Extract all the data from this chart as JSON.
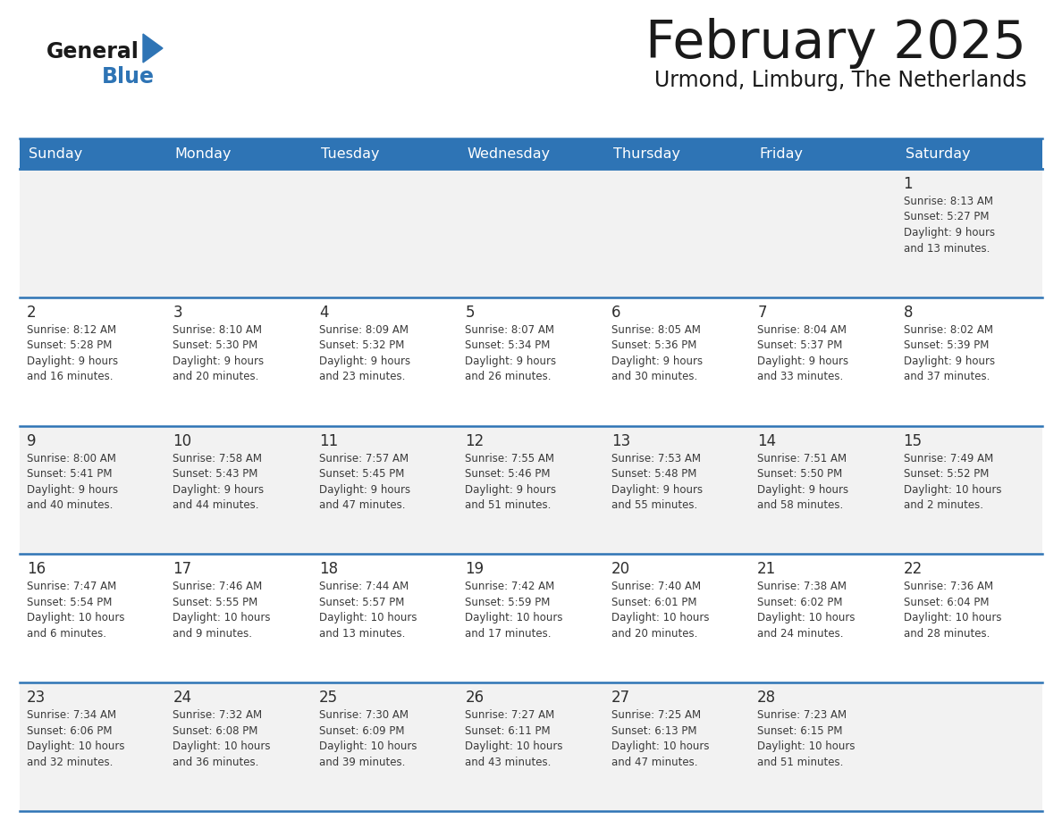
{
  "title": "February 2025",
  "subtitle": "Urmond, Limburg, The Netherlands",
  "header_bg": "#2E74B5",
  "header_text_color": "#FFFFFF",
  "day_names": [
    "Sunday",
    "Monday",
    "Tuesday",
    "Wednesday",
    "Thursday",
    "Friday",
    "Saturday"
  ],
  "cell_bg_odd": "#F2F2F2",
  "cell_bg_even": "#FFFFFF",
  "border_color": "#2E74B5",
  "title_color": "#1a1a1a",
  "subtitle_color": "#1a1a1a",
  "day_number_color": "#2E2E2E",
  "info_text_color": "#3a3a3a",
  "calendar_data": [
    [
      null,
      null,
      null,
      null,
      null,
      null,
      {
        "day": "1",
        "sunrise": "8:13 AM",
        "sunset": "5:27 PM",
        "daylight_hrs": "9",
        "daylight_min": "13"
      }
    ],
    [
      {
        "day": "2",
        "sunrise": "8:12 AM",
        "sunset": "5:28 PM",
        "daylight_hrs": "9",
        "daylight_min": "16"
      },
      {
        "day": "3",
        "sunrise": "8:10 AM",
        "sunset": "5:30 PM",
        "daylight_hrs": "9",
        "daylight_min": "20"
      },
      {
        "day": "4",
        "sunrise": "8:09 AM",
        "sunset": "5:32 PM",
        "daylight_hrs": "9",
        "daylight_min": "23"
      },
      {
        "day": "5",
        "sunrise": "8:07 AM",
        "sunset": "5:34 PM",
        "daylight_hrs": "9",
        "daylight_min": "26"
      },
      {
        "day": "6",
        "sunrise": "8:05 AM",
        "sunset": "5:36 PM",
        "daylight_hrs": "9",
        "daylight_min": "30"
      },
      {
        "day": "7",
        "sunrise": "8:04 AM",
        "sunset": "5:37 PM",
        "daylight_hrs": "9",
        "daylight_min": "33"
      },
      {
        "day": "8",
        "sunrise": "8:02 AM",
        "sunset": "5:39 PM",
        "daylight_hrs": "9",
        "daylight_min": "37"
      }
    ],
    [
      {
        "day": "9",
        "sunrise": "8:00 AM",
        "sunset": "5:41 PM",
        "daylight_hrs": "9",
        "daylight_min": "40"
      },
      {
        "day": "10",
        "sunrise": "7:58 AM",
        "sunset": "5:43 PM",
        "daylight_hrs": "9",
        "daylight_min": "44"
      },
      {
        "day": "11",
        "sunrise": "7:57 AM",
        "sunset": "5:45 PM",
        "daylight_hrs": "9",
        "daylight_min": "47"
      },
      {
        "day": "12",
        "sunrise": "7:55 AM",
        "sunset": "5:46 PM",
        "daylight_hrs": "9",
        "daylight_min": "51"
      },
      {
        "day": "13",
        "sunrise": "7:53 AM",
        "sunset": "5:48 PM",
        "daylight_hrs": "9",
        "daylight_min": "55"
      },
      {
        "day": "14",
        "sunrise": "7:51 AM",
        "sunset": "5:50 PM",
        "daylight_hrs": "9",
        "daylight_min": "58"
      },
      {
        "day": "15",
        "sunrise": "7:49 AM",
        "sunset": "5:52 PM",
        "daylight_hrs": "10",
        "daylight_min": "2"
      }
    ],
    [
      {
        "day": "16",
        "sunrise": "7:47 AM",
        "sunset": "5:54 PM",
        "daylight_hrs": "10",
        "daylight_min": "6"
      },
      {
        "day": "17",
        "sunrise": "7:46 AM",
        "sunset": "5:55 PM",
        "daylight_hrs": "10",
        "daylight_min": "9"
      },
      {
        "day": "18",
        "sunrise": "7:44 AM",
        "sunset": "5:57 PM",
        "daylight_hrs": "10",
        "daylight_min": "13"
      },
      {
        "day": "19",
        "sunrise": "7:42 AM",
        "sunset": "5:59 PM",
        "daylight_hrs": "10",
        "daylight_min": "17"
      },
      {
        "day": "20",
        "sunrise": "7:40 AM",
        "sunset": "6:01 PM",
        "daylight_hrs": "10",
        "daylight_min": "20"
      },
      {
        "day": "21",
        "sunrise": "7:38 AM",
        "sunset": "6:02 PM",
        "daylight_hrs": "10",
        "daylight_min": "24"
      },
      {
        "day": "22",
        "sunrise": "7:36 AM",
        "sunset": "6:04 PM",
        "daylight_hrs": "10",
        "daylight_min": "28"
      }
    ],
    [
      {
        "day": "23",
        "sunrise": "7:34 AM",
        "sunset": "6:06 PM",
        "daylight_hrs": "10",
        "daylight_min": "32"
      },
      {
        "day": "24",
        "sunrise": "7:32 AM",
        "sunset": "6:08 PM",
        "daylight_hrs": "10",
        "daylight_min": "36"
      },
      {
        "day": "25",
        "sunrise": "7:30 AM",
        "sunset": "6:09 PM",
        "daylight_hrs": "10",
        "daylight_min": "39"
      },
      {
        "day": "26",
        "sunrise": "7:27 AM",
        "sunset": "6:11 PM",
        "daylight_hrs": "10",
        "daylight_min": "43"
      },
      {
        "day": "27",
        "sunrise": "7:25 AM",
        "sunset": "6:13 PM",
        "daylight_hrs": "10",
        "daylight_min": "47"
      },
      {
        "day": "28",
        "sunrise": "7:23 AM",
        "sunset": "6:15 PM",
        "daylight_hrs": "10",
        "daylight_min": "51"
      },
      null
    ]
  ],
  "logo_text_general": "General",
  "logo_text_blue": "Blue",
  "logo_triangle_color": "#2E74B5",
  "logo_general_color": "#1a1a1a"
}
